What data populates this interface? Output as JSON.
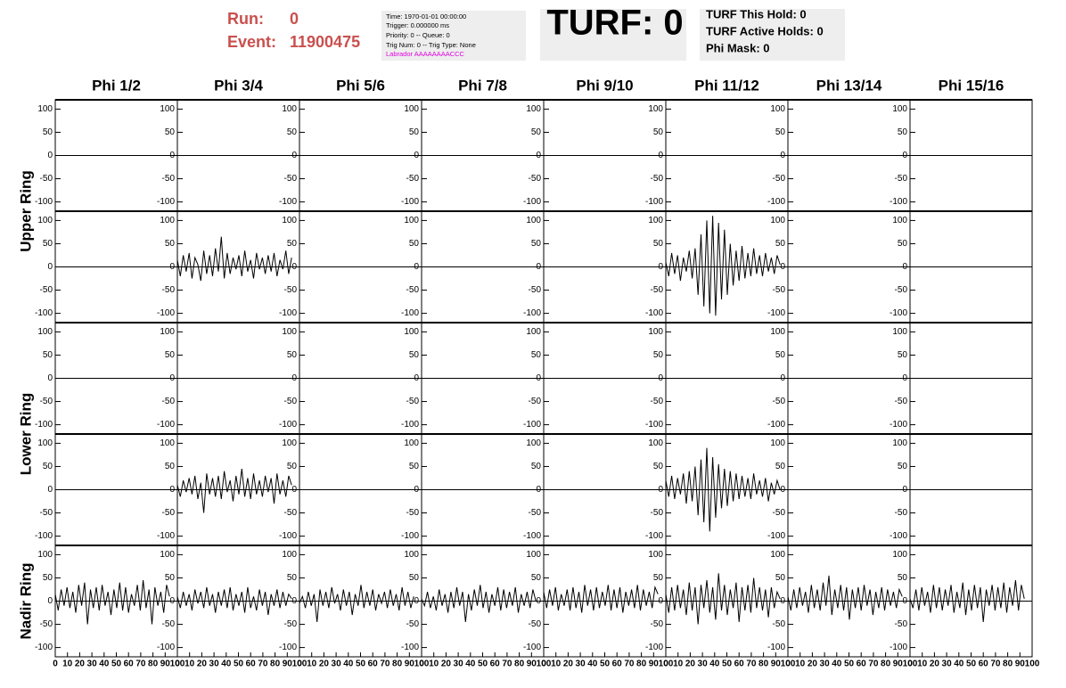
{
  "header": {
    "run_label": "Run:",
    "run": "0",
    "event_label": "Event:",
    "event": "11900475",
    "info": [
      "Time: 1970-01-01 00:00:00",
      "Trigger: 0.000000 ms",
      "Priority: 0 -- Queue: 0",
      "Trig Num: 0 -- Trig Type: None"
    ],
    "labrador": "Labrador AAAAAAAACCC",
    "turf": "TURF: 0",
    "turf_info": [
      "TURF This Hold: 0",
      "TURF Active Holds: 0",
      "Phi Mask: 0"
    ]
  },
  "chart_data": {
    "type": "line",
    "columns": [
      "Phi 1/2",
      "Phi 3/4",
      "Phi 5/6",
      "Phi 7/8",
      "Phi 9/10",
      "Phi 11/12",
      "Phi 13/14",
      "Phi 15/16"
    ],
    "xlim": [
      0,
      100
    ],
    "xticks": [
      0,
      10,
      20,
      30,
      40,
      50,
      60,
      70,
      80,
      90,
      100
    ],
    "ylim": [
      -120,
      120
    ],
    "yticks": [
      -100,
      -50,
      0,
      50,
      100
    ],
    "color": "#000000",
    "x": [
      0,
      2.4,
      4.8,
      7.2,
      9.6,
      12,
      14.4,
      16.8,
      19.2,
      21.6,
      24,
      26.4,
      28.8,
      31.2,
      33.6,
      36,
      38.4,
      40.8,
      43.2,
      45.6,
      48,
      50.4,
      52.8,
      55.2,
      57.6,
      60,
      62.4,
      64.8,
      67.2,
      69.6,
      72,
      74.4,
      76.8,
      79.2,
      81.6,
      84,
      86.4,
      88.8,
      91.2,
      93.6
    ],
    "rings": [
      {
        "label": "Upper Ring",
        "rows": [
          [
            null,
            null,
            null,
            null,
            null,
            null,
            null,
            null
          ],
          [
            null,
            [
              15,
              -20,
              25,
              -10,
              30,
              -25,
              20,
              5,
              -30,
              35,
              -15,
              25,
              -20,
              40,
              -10,
              65,
              -25,
              30,
              -15,
              20,
              -5,
              25,
              -20,
              35,
              -10,
              15,
              -25,
              30,
              -5,
              20,
              -15,
              25,
              -10,
              30,
              -20,
              15,
              -5,
              35,
              -15,
              20
            ],
            null,
            null,
            null,
            [
              10,
              -20,
              30,
              -15,
              25,
              -30,
              20,
              -10,
              35,
              -25,
              40,
              -60,
              70,
              -85,
              100,
              -100,
              110,
              -105,
              95,
              -70,
              80,
              -60,
              50,
              -40,
              35,
              -30,
              45,
              -25,
              30,
              -20,
              40,
              -15,
              25,
              -20,
              30,
              -10,
              20,
              -15,
              25,
              5
            ],
            null,
            null
          ]
        ]
      },
      {
        "label": "Lower Ring",
        "rows": [
          [
            null,
            null,
            null,
            null,
            null,
            null,
            null,
            null
          ],
          [
            null,
            [
              10,
              -15,
              20,
              -5,
              25,
              -10,
              30,
              -20,
              15,
              -50,
              35,
              -10,
              25,
              -15,
              30,
              -20,
              40,
              -5,
              20,
              -25,
              30,
              -10,
              45,
              -15,
              25,
              -20,
              35,
              -10,
              20,
              -15,
              30,
              -5,
              25,
              -30,
              35,
              -10,
              20,
              -15,
              30,
              10
            ],
            null,
            null,
            null,
            [
              20,
              -15,
              30,
              -20,
              25,
              -10,
              35,
              -30,
              40,
              -25,
              50,
              -55,
              65,
              -70,
              90,
              -90,
              70,
              -60,
              55,
              -40,
              45,
              -35,
              40,
              -25,
              35,
              -20,
              30,
              -15,
              25,
              -20,
              35,
              -10,
              20,
              -15,
              25,
              -25,
              15,
              -10,
              20,
              0
            ],
            null,
            null
          ]
        ]
      },
      {
        "label": "Nadir Ring",
        "rows": [
          [
            [
              15,
              -20,
              25,
              -10,
              30,
              -15,
              20,
              -25,
              35,
              -10,
              40,
              -50,
              25,
              -15,
              30,
              -20,
              35,
              -10,
              20,
              -30,
              25,
              -15,
              40,
              -20,
              30,
              -25,
              15,
              -10,
              35,
              -20,
              45,
              -15,
              25,
              -50,
              30,
              -10,
              20,
              -25,
              35,
              10
            ],
            [
              10,
              -15,
              20,
              -10,
              15,
              -20,
              25,
              -5,
              20,
              -15,
              30,
              -10,
              15,
              -25,
              20,
              -10,
              25,
              -15,
              30,
              -20,
              15,
              -10,
              20,
              -25,
              30,
              -15,
              10,
              -20,
              25,
              -10,
              20,
              -30,
              15,
              -10,
              25,
              -15,
              20,
              -10,
              15,
              5
            ],
            [
              -5,
              10,
              -15,
              20,
              -10,
              15,
              -45,
              25,
              -10,
              20,
              -15,
              30,
              -5,
              15,
              -20,
              25,
              -10,
              20,
              -30,
              15,
              -10,
              35,
              -15,
              20,
              -10,
              25,
              -20,
              15,
              -5,
              20,
              -15,
              25,
              -10,
              15,
              -20,
              30,
              -10,
              20,
              -15,
              10
            ],
            [
              5,
              -10,
              20,
              -15,
              10,
              -20,
              25,
              -10,
              15,
              -25,
              20,
              -15,
              30,
              -10,
              20,
              -45,
              15,
              -20,
              25,
              -10,
              35,
              -15,
              20,
              -25,
              15,
              -10,
              30,
              -20,
              25,
              -15,
              20,
              -10,
              30,
              -25,
              15,
              -10,
              20,
              -15,
              25,
              0
            ],
            [
              20,
              -15,
              25,
              -10,
              30,
              -20,
              15,
              -10,
              25,
              -20,
              30,
              -15,
              20,
              -25,
              35,
              -10,
              25,
              -20,
              30,
              -15,
              20,
              -10,
              35,
              -20,
              25,
              -15,
              30,
              -25,
              20,
              -10,
              25,
              -15,
              35,
              -20,
              25,
              -10,
              20,
              -15,
              30,
              15
            ],
            [
              15,
              -25,
              30,
              -20,
              35,
              -15,
              25,
              -30,
              40,
              -20,
              30,
              -50,
              35,
              -15,
              45,
              -25,
              30,
              -40,
              60,
              -20,
              35,
              -30,
              25,
              -15,
              40,
              -45,
              30,
              -20,
              35,
              -25,
              50,
              -15,
              30,
              -20,
              25,
              -35,
              30,
              -15,
              20,
              5
            ],
            [
              10,
              -20,
              25,
              -15,
              30,
              -10,
              20,
              -25,
              35,
              -15,
              25,
              -20,
              40,
              -10,
              55,
              -30,
              25,
              -15,
              35,
              -20,
              30,
              -40,
              25,
              -15,
              30,
              -20,
              35,
              -10,
              25,
              -30,
              20,
              -15,
              30,
              -20,
              25,
              -10,
              20,
              -15,
              25,
              10
            ],
            [
              5,
              -15,
              25,
              -20,
              30,
              -10,
              20,
              -25,
              35,
              -15,
              30,
              -20,
              25,
              -10,
              35,
              -25,
              20,
              -15,
              40,
              -30,
              25,
              -20,
              35,
              -15,
              30,
              -45,
              25,
              -10,
              35,
              -20,
              30,
              -15,
              40,
              -25,
              30,
              -10,
              45,
              -20,
              35,
              5
            ]
          ]
        ]
      }
    ]
  }
}
